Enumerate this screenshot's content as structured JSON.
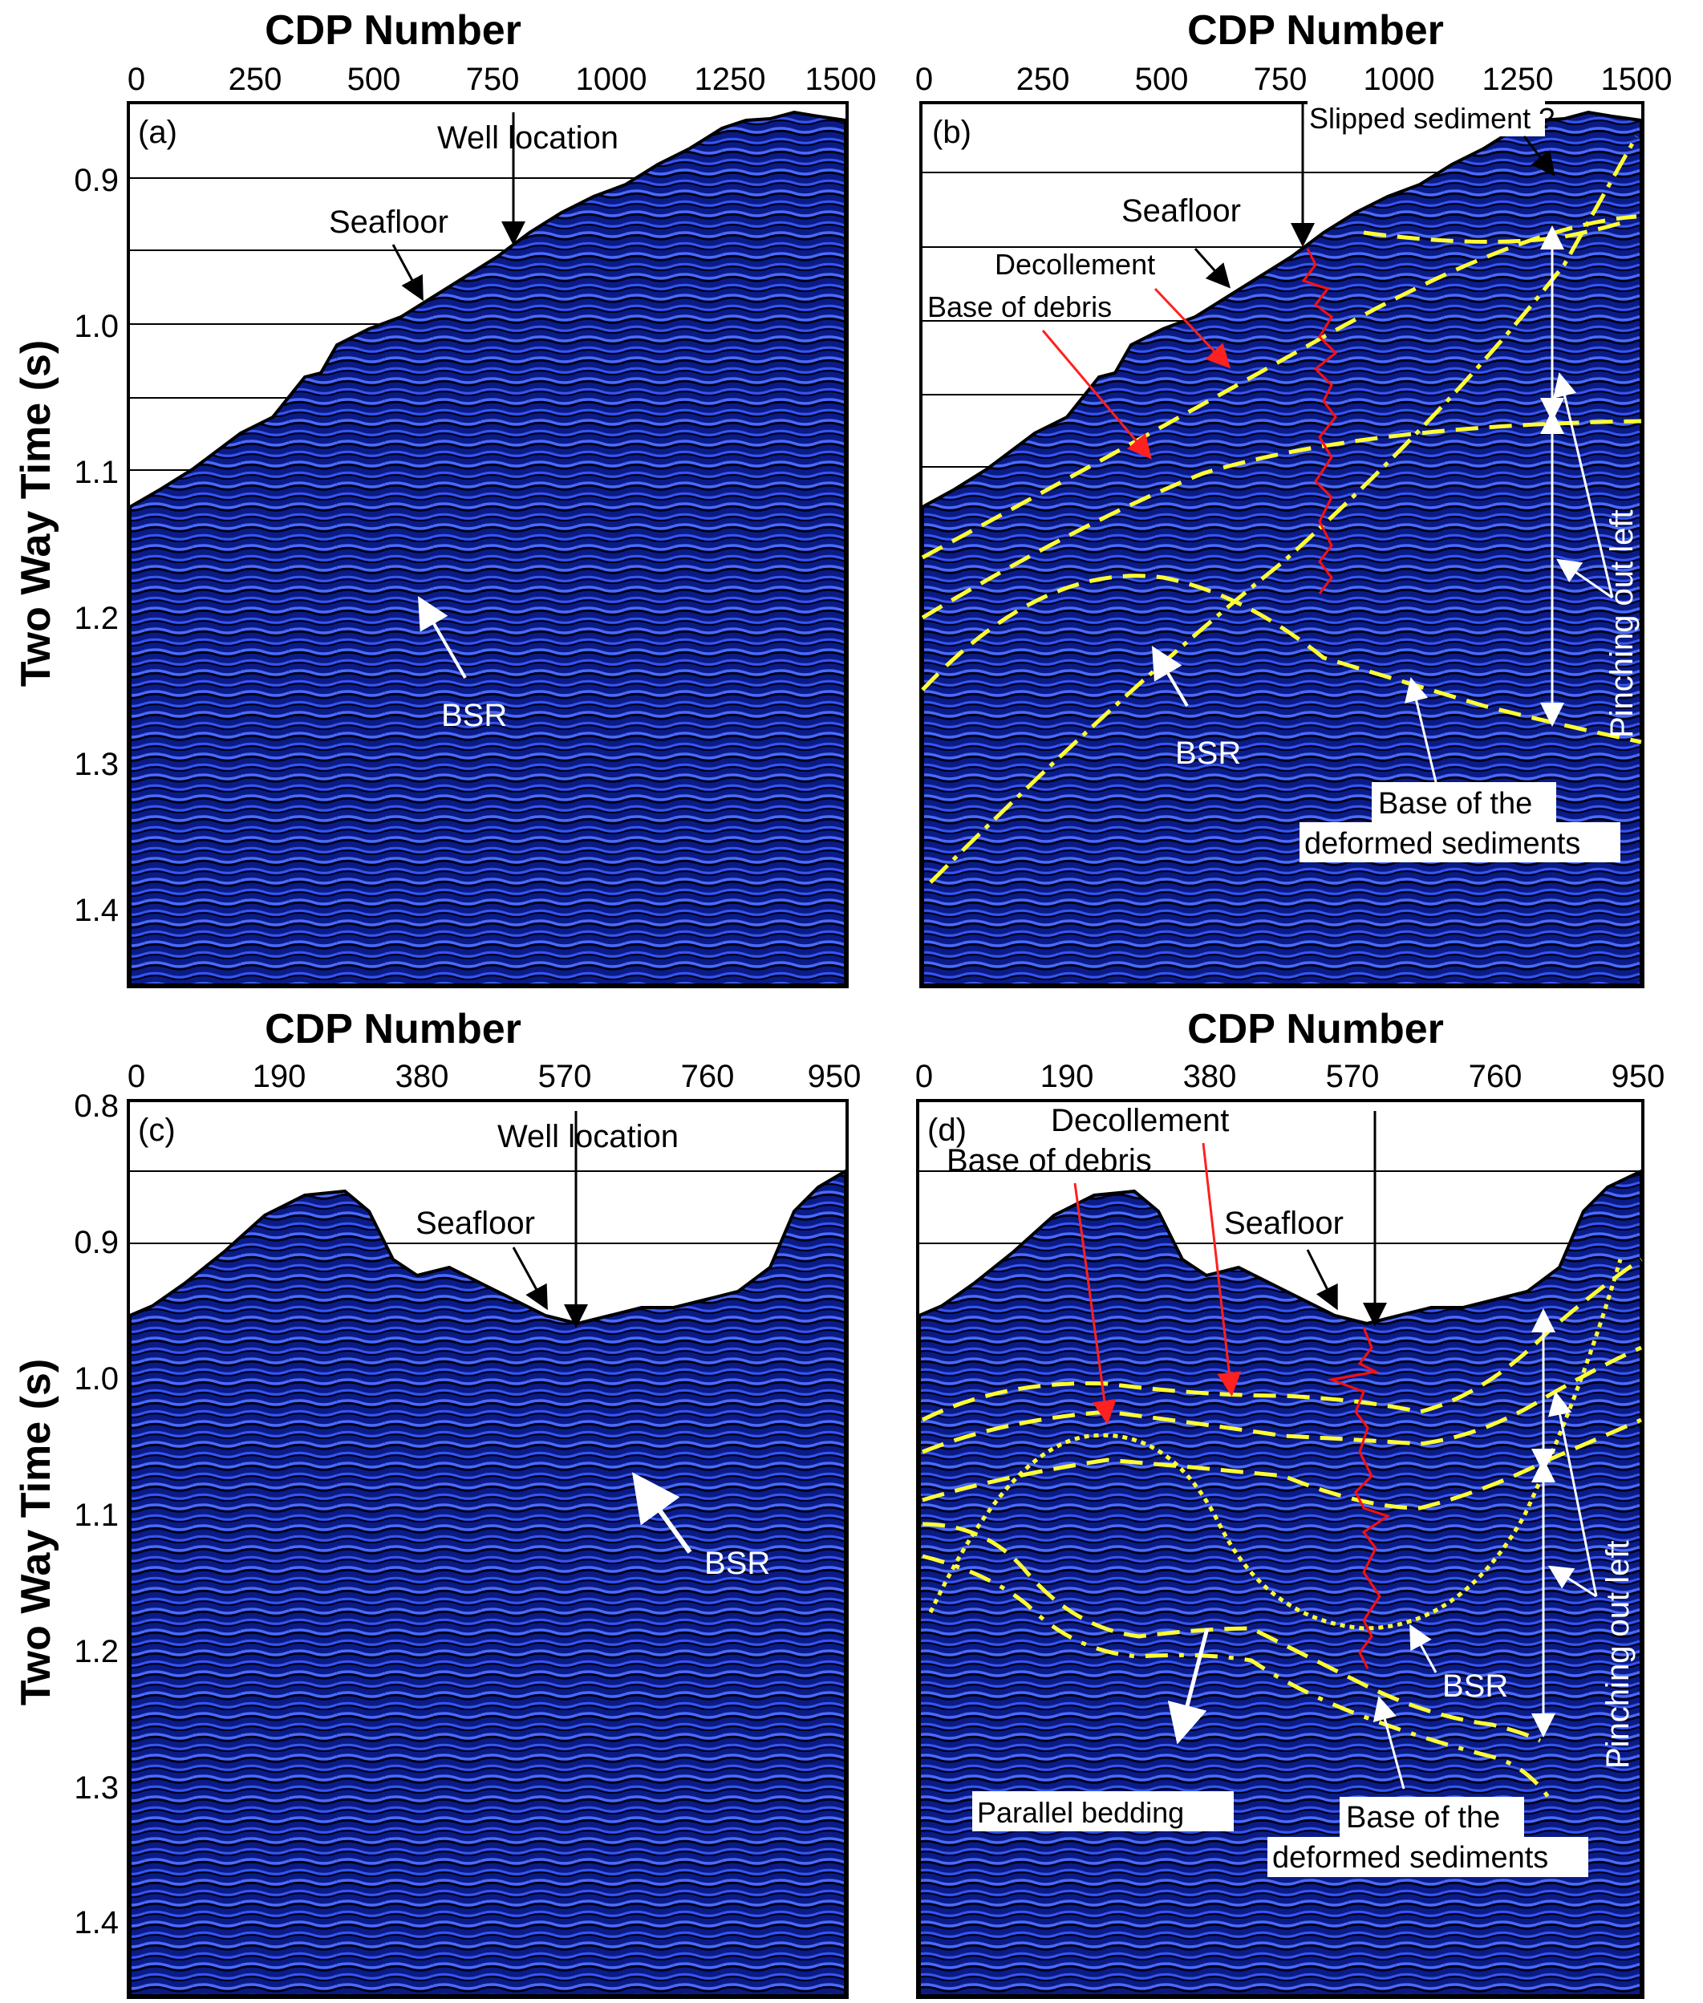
{
  "panels": [
    {
      "id": "a",
      "label": "(a)",
      "x_title": "CDP Number",
      "x_ticks": [
        "0",
        "250",
        "500",
        "750",
        "1000",
        "1250",
        "1500"
      ],
      "y_title": "Two Way Time (s)",
      "y_ticks": [
        "0.9",
        "1.0",
        "1.1",
        "1.2",
        "1.3",
        "1.4"
      ],
      "annotations": {
        "well_location": "Well location",
        "seafloor": "Seafloor",
        "bsr": "BSR"
      }
    },
    {
      "id": "b",
      "label": "(b)",
      "x_title": "CDP Number",
      "x_ticks": [
        "0",
        "250",
        "500",
        "750",
        "1000",
        "1250",
        "1500"
      ],
      "annotations": {
        "slipped": "Slipped sediment ?",
        "seafloor": "Seafloor",
        "decollement": "Decollement",
        "base_debris": "Base of debris",
        "bsr": "BSR",
        "base_deformed_1": "Base of the",
        "base_deformed_2": "deformed sediments",
        "pinching": "Pinching out left"
      }
    },
    {
      "id": "c",
      "label": "(c)",
      "x_title": "CDP Number",
      "x_ticks": [
        "0",
        "190",
        "380",
        "570",
        "760",
        "950"
      ],
      "y_title": "Two Way Time (s)",
      "y_ticks": [
        "0.8",
        "0.9",
        "1.0",
        "1.1",
        "1.2",
        "1.3",
        "1.4"
      ],
      "annotations": {
        "well_location": "Well location",
        "seafloor": "Seafloor",
        "bsr": "BSR"
      }
    },
    {
      "id": "d",
      "label": "(d)",
      "x_title": "CDP Number",
      "x_ticks": [
        "0",
        "190",
        "380",
        "570",
        "760",
        "950"
      ],
      "annotations": {
        "decollement": "Decollement",
        "base_debris": "Base of debris",
        "seafloor": "Seafloor",
        "bsr": "BSR",
        "parallel": "Parallel bedding",
        "base_deformed_1": "Base of the",
        "base_deformed_2": "deformed sediments",
        "pinching": "Pinching out left"
      }
    }
  ],
  "colors": {
    "seismic_bg": "#0a1a7a",
    "seismic_line": "#3b5cff",
    "horizon": "#ffff33",
    "well_log": "#ff1010",
    "arrow_white": "#ffffff",
    "arrow_red": "#ff2020"
  }
}
